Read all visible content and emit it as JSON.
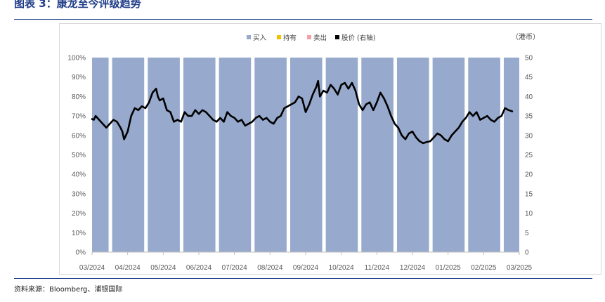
{
  "header": {
    "title": "图表 3：康龙至今评级趋势",
    "unit_label": "（港币）"
  },
  "source": "资料来源：Bloomberg、浦银国际",
  "chart_data": {
    "type": "bar+line",
    "legend": [
      "买入",
      "持有",
      "卖出",
      "股价 (右轴)"
    ],
    "colors": {
      "buy": "#97a9cc",
      "hold": "#f5c000",
      "sell": "#f4a0a8",
      "price": "#000000"
    },
    "x_ticks": [
      "03/2024",
      "04/2024",
      "05/2024",
      "06/2024",
      "07/2024",
      "08/2024",
      "09/2024",
      "10/2024",
      "11/2024",
      "12/2024",
      "01/2025",
      "02/2025",
      "03/2025"
    ],
    "left_axis": {
      "ticks": [
        "0%",
        "10%",
        "20%",
        "30%",
        "40%",
        "50%",
        "60%",
        "70%",
        "80%",
        "90%",
        "100%"
      ],
      "range": [
        0,
        100
      ]
    },
    "right_axis": {
      "ticks": [
        "0",
        "5",
        "10",
        "15",
        "20",
        "25",
        "30",
        "35",
        "40",
        "45",
        "50"
      ],
      "range": [
        0,
        50
      ]
    },
    "bars": {
      "buy": [
        100,
        100,
        100,
        100,
        100,
        100,
        100,
        100,
        100,
        100,
        100,
        100,
        100
      ]
    },
    "price": [
      [
        0.0,
        34.2
      ],
      [
        0.05,
        34.0
      ],
      [
        0.1,
        35.0
      ],
      [
        0.2,
        34.0
      ],
      [
        0.3,
        33.0
      ],
      [
        0.4,
        32.0
      ],
      [
        0.5,
        33.0
      ],
      [
        0.6,
        34.0
      ],
      [
        0.7,
        33.5
      ],
      [
        0.8,
        32.0
      ],
      [
        0.85,
        31.0
      ],
      [
        0.9,
        29.0
      ],
      [
        1.0,
        31.0
      ],
      [
        1.1,
        35.0
      ],
      [
        1.2,
        37.0
      ],
      [
        1.3,
        36.5
      ],
      [
        1.4,
        37.5
      ],
      [
        1.5,
        37.0
      ],
      [
        1.6,
        38.5
      ],
      [
        1.7,
        41.0
      ],
      [
        1.8,
        42.0
      ],
      [
        1.85,
        40.0
      ],
      [
        1.9,
        39.0
      ],
      [
        2.0,
        39.5
      ],
      [
        2.1,
        36.5
      ],
      [
        2.2,
        36.0
      ],
      [
        2.3,
        33.5
      ],
      [
        2.4,
        34.0
      ],
      [
        2.5,
        33.5
      ],
      [
        2.6,
        36.0
      ],
      [
        2.7,
        35.0
      ],
      [
        2.8,
        35.0
      ],
      [
        2.9,
        36.5
      ],
      [
        3.0,
        35.5
      ],
      [
        3.1,
        36.5
      ],
      [
        3.2,
        36.0
      ],
      [
        3.3,
        35.0
      ],
      [
        3.4,
        34.0
      ],
      [
        3.5,
        33.5
      ],
      [
        3.6,
        34.5
      ],
      [
        3.7,
        33.5
      ],
      [
        3.8,
        36.0
      ],
      [
        3.9,
        35.0
      ],
      [
        4.0,
        34.5
      ],
      [
        4.1,
        33.5
      ],
      [
        4.2,
        34.0
      ],
      [
        4.3,
        32.5
      ],
      [
        4.4,
        33.0
      ],
      [
        4.5,
        33.5
      ],
      [
        4.6,
        34.5
      ],
      [
        4.7,
        35.0
      ],
      [
        4.8,
        34.0
      ],
      [
        4.9,
        34.5
      ],
      [
        5.0,
        33.5
      ],
      [
        5.1,
        33.0
      ],
      [
        5.2,
        34.5
      ],
      [
        5.3,
        35.0
      ],
      [
        5.4,
        37.0
      ],
      [
        5.5,
        37.5
      ],
      [
        5.6,
        38.0
      ],
      [
        5.7,
        38.5
      ],
      [
        5.8,
        40.0
      ],
      [
        5.9,
        39.5
      ],
      [
        6.0,
        36.0
      ],
      [
        6.1,
        38.0
      ],
      [
        6.2,
        40.5
      ],
      [
        6.3,
        42.5
      ],
      [
        6.35,
        44.0
      ],
      [
        6.4,
        40.0
      ],
      [
        6.5,
        41.5
      ],
      [
        6.6,
        41.0
      ],
      [
        6.7,
        43.0
      ],
      [
        6.8,
        42.0
      ],
      [
        6.9,
        40.5
      ],
      [
        7.0,
        43.0
      ],
      [
        7.1,
        43.5
      ],
      [
        7.2,
        42.0
      ],
      [
        7.3,
        43.5
      ],
      [
        7.4,
        41.5
      ],
      [
        7.5,
        38.0
      ],
      [
        7.6,
        36.5
      ],
      [
        7.7,
        38.0
      ],
      [
        7.8,
        38.5
      ],
      [
        7.9,
        36.5
      ],
      [
        8.0,
        38.5
      ],
      [
        8.1,
        41.0
      ],
      [
        8.2,
        39.5
      ],
      [
        8.3,
        37.5
      ],
      [
        8.4,
        35.0
      ],
      [
        8.5,
        33.0
      ],
      [
        8.6,
        32.0
      ],
      [
        8.7,
        30.0
      ],
      [
        8.8,
        29.0
      ],
      [
        8.9,
        30.5
      ],
      [
        9.0,
        31.0
      ],
      [
        9.1,
        29.5
      ],
      [
        9.2,
        28.5
      ],
      [
        9.3,
        28.0
      ],
      [
        9.4,
        28.3
      ],
      [
        9.5,
        28.5
      ],
      [
        9.6,
        29.5
      ],
      [
        9.7,
        30.5
      ],
      [
        9.8,
        30.0
      ],
      [
        9.9,
        29.0
      ],
      [
        10.0,
        28.5
      ],
      [
        10.1,
        30.0
      ],
      [
        10.2,
        31.0
      ],
      [
        10.3,
        32.0
      ],
      [
        10.4,
        33.5
      ],
      [
        10.5,
        34.5
      ],
      [
        10.6,
        36.0
      ],
      [
        10.7,
        35.0
      ],
      [
        10.8,
        36.0
      ],
      [
        10.9,
        34.0
      ],
      [
        11.0,
        34.5
      ],
      [
        11.1,
        35.0
      ],
      [
        11.2,
        34.0
      ],
      [
        11.3,
        33.5
      ],
      [
        11.4,
        34.5
      ],
      [
        11.5,
        35.0
      ],
      [
        11.6,
        37.0
      ],
      [
        11.7,
        36.5
      ],
      [
        11.8,
        36.2
      ]
    ]
  }
}
